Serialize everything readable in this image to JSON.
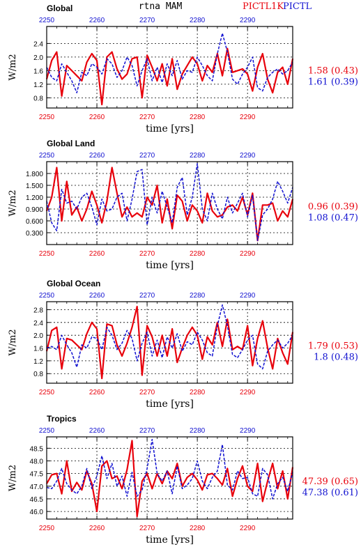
{
  "header": {
    "center_title": "rtna MAM",
    "series1_name": "PICTL1K",
    "series2_name": "PICTL",
    "red_color": "#e8000b",
    "blue_color": "#1010d0"
  },
  "chart_data": [
    {
      "type": "line",
      "title": "Global",
      "xlabel": "time [yrs]",
      "ylabel": "W/m2",
      "xlim": [
        2250,
        2299
      ],
      "ylim": [
        0.5,
        2.9
      ],
      "xticks": [
        2250,
        2260,
        2270,
        2280,
        2290
      ],
      "xtick_labels": [
        "2250",
        "2260",
        "2270",
        "2280",
        "2290"
      ],
      "yticks": [
        0.8,
        1.2,
        1.6,
        2.0,
        2.4
      ],
      "ytick_labels": [
        "0.8",
        "1.2",
        "1.6",
        "2.0",
        "2.4"
      ],
      "grid": true,
      "stats": [
        "1.58 (0.43)",
        "1.61 (0.39)"
      ],
      "x": [
        2250,
        2251,
        2252,
        2253,
        2254,
        2255,
        2256,
        2257,
        2258,
        2259,
        2260,
        2261,
        2262,
        2263,
        2264,
        2265,
        2266,
        2267,
        2268,
        2269,
        2270,
        2271,
        2272,
        2273,
        2274,
        2275,
        2276,
        2277,
        2278,
        2279,
        2280,
        2281,
        2282,
        2283,
        2284,
        2285,
        2286,
        2287,
        2288,
        2289,
        2290,
        2291,
        2292,
        2293,
        2294,
        2295,
        2296,
        2297,
        2298,
        2299
      ],
      "series": [
        {
          "name": "PICTL1K",
          "color": "#e8000b",
          "style": "solid",
          "values": [
            1.35,
            1.9,
            2.15,
            0.85,
            1.75,
            1.6,
            1.45,
            1.3,
            1.85,
            2.1,
            1.9,
            0.6,
            2.0,
            2.15,
            1.65,
            1.35,
            1.5,
            1.95,
            2.0,
            0.8,
            2.05,
            1.7,
            1.3,
            1.8,
            1.15,
            1.95,
            1.05,
            1.5,
            1.75,
            2.0,
            1.8,
            1.3,
            1.75,
            1.55,
            2.1,
            1.45,
            2.25,
            1.55,
            1.6,
            1.65,
            1.5,
            1.0,
            1.7,
            2.1,
            1.35,
            0.95,
            1.55,
            1.7,
            1.2,
            1.95
          ]
        },
        {
          "name": "PICTL",
          "color": "#1010d0",
          "style": "dashed",
          "values": [
            1.7,
            1.4,
            1.3,
            1.8,
            1.55,
            1.3,
            0.95,
            1.55,
            1.45,
            1.8,
            1.7,
            1.5,
            1.95,
            1.8,
            1.4,
            1.6,
            2.0,
            1.75,
            1.15,
            1.6,
            1.95,
            1.3,
            1.7,
            1.25,
            1.8,
            1.45,
            1.9,
            1.35,
            1.6,
            1.55,
            2.0,
            1.75,
            1.45,
            1.3,
            2.1,
            2.7,
            2.15,
            1.35,
            1.2,
            1.5,
            1.7,
            2.0,
            1.1,
            1.0,
            1.4,
            1.55,
            1.65,
            1.5,
            1.6,
            1.85
          ]
        }
      ]
    },
    {
      "type": "line",
      "title": "Global Land",
      "xlabel": "time [yrs]",
      "ylabel": "W/m2",
      "xlim": [
        2250,
        2299
      ],
      "ylim": [
        0.0,
        2.1
      ],
      "xticks": [
        2250,
        2260,
        2270,
        2280,
        2290
      ],
      "xtick_labels": [
        "2250",
        "2260",
        "2270",
        "2280",
        "2290"
      ],
      "yticks": [
        0.3,
        0.6,
        0.9,
        1.2,
        1.5,
        1.8
      ],
      "ytick_labels": [
        "0.300",
        "0.600",
        "0.900",
        "1.200",
        "1.500",
        "1.800"
      ],
      "grid": true,
      "stats": [
        "0.96 (0.39)",
        "1.08 (0.47)"
      ],
      "x": [
        2250,
        2251,
        2252,
        2253,
        2254,
        2255,
        2256,
        2257,
        2258,
        2259,
        2260,
        2261,
        2262,
        2263,
        2264,
        2265,
        2266,
        2267,
        2268,
        2269,
        2270,
        2271,
        2272,
        2273,
        2274,
        2275,
        2276,
        2277,
        2278,
        2279,
        2280,
        2281,
        2282,
        2283,
        2284,
        2285,
        2286,
        2287,
        2288,
        2289,
        2290,
        2291,
        2292,
        2293,
        2294,
        2295,
        2296,
        2297,
        2298,
        2299
      ],
      "series": [
        {
          "name": "PICTL1K",
          "color": "#e8000b",
          "style": "solid",
          "values": [
            0.85,
            1.2,
            1.95,
            0.6,
            1.6,
            0.75,
            0.95,
            0.6,
            0.9,
            1.35,
            1.0,
            0.55,
            1.1,
            1.95,
            1.3,
            0.7,
            0.95,
            0.7,
            0.8,
            0.7,
            1.2,
            1.0,
            1.5,
            0.55,
            1.15,
            0.4,
            1.25,
            1.1,
            0.6,
            1.0,
            0.85,
            0.55,
            1.3,
            0.85,
            0.7,
            0.75,
            0.95,
            1.0,
            0.85,
            1.2,
            0.75,
            1.3,
            0.1,
            1.0,
            1.0,
            1.05,
            0.6,
            0.85,
            0.7,
            1.15
          ]
        },
        {
          "name": "PICTL",
          "color": "#1010d0",
          "style": "dashed",
          "values": [
            1.1,
            0.55,
            0.35,
            1.4,
            1.05,
            1.1,
            0.9,
            1.2,
            1.3,
            0.95,
            0.5,
            1.15,
            0.85,
            0.9,
            1.2,
            1.3,
            0.6,
            1.15,
            1.85,
            1.9,
            0.5,
            1.2,
            0.8,
            1.35,
            0.95,
            0.55,
            1.45,
            1.7,
            0.75,
            1.2,
            2.05,
            0.9,
            0.6,
            1.3,
            0.9,
            0.65,
            1.2,
            0.8,
            1.05,
            1.3,
            0.7,
            1.25,
            0.1,
            0.75,
            0.9,
            1.15,
            1.6,
            1.35,
            1.05,
            1.45
          ]
        }
      ]
    },
    {
      "type": "line",
      "title": "Global Ocean",
      "xlabel": "time [yrs]",
      "ylabel": "W/m2",
      "xlim": [
        2250,
        2299
      ],
      "ylim": [
        0.5,
        3.05
      ],
      "xticks": [
        2250,
        2260,
        2270,
        2280,
        2290
      ],
      "xtick_labels": [
        "2250",
        "2260",
        "2270",
        "2280",
        "2290"
      ],
      "yticks": [
        0.8,
        1.2,
        1.6,
        2.0,
        2.4,
        2.8
      ],
      "ytick_labels": [
        "0.8",
        "1.2",
        "1.6",
        "2.0",
        "2.4",
        "2.8"
      ],
      "grid": true,
      "stats": [
        "1.79 (0.53)",
        "1.8 (0.48)"
      ],
      "x": [
        2250,
        2251,
        2252,
        2253,
        2254,
        2255,
        2256,
        2257,
        2258,
        2259,
        2260,
        2261,
        2262,
        2263,
        2264,
        2265,
        2266,
        2267,
        2268,
        2269,
        2270,
        2271,
        2272,
        2273,
        2274,
        2275,
        2276,
        2277,
        2278,
        2279,
        2280,
        2281,
        2282,
        2283,
        2284,
        2285,
        2286,
        2287,
        2288,
        2289,
        2290,
        2291,
        2292,
        2293,
        2294,
        2295,
        2296,
        2297,
        2298,
        2299
      ],
      "series": [
        {
          "name": "PICTL1K",
          "color": "#e8000b",
          "style": "solid",
          "values": [
            1.5,
            2.15,
            2.25,
            0.95,
            1.9,
            1.85,
            1.7,
            1.55,
            2.05,
            2.4,
            2.2,
            0.65,
            2.35,
            2.3,
            1.7,
            1.35,
            1.75,
            2.25,
            2.9,
            0.75,
            2.3,
            1.95,
            1.35,
            2.0,
            1.35,
            2.2,
            1.15,
            1.6,
            2.0,
            2.25,
            2.0,
            1.25,
            1.95,
            1.7,
            2.4,
            1.65,
            2.5,
            1.55,
            1.65,
            1.55,
            2.3,
            1.05,
            1.9,
            2.45,
            1.6,
            0.95,
            1.9,
            1.45,
            1.1,
            2.1
          ]
        },
        {
          "name": "PICTL",
          "color": "#1010d0",
          "style": "dashed",
          "values": [
            1.6,
            1.65,
            1.55,
            2.0,
            1.7,
            1.45,
            1.0,
            1.7,
            1.6,
            1.95,
            1.9,
            1.55,
            2.25,
            2.0,
            1.55,
            1.75,
            2.15,
            1.9,
            1.2,
            1.75,
            2.1,
            1.35,
            1.85,
            1.3,
            1.95,
            1.6,
            2.05,
            1.5,
            1.8,
            1.7,
            2.1,
            1.85,
            1.45,
            1.35,
            2.3,
            2.95,
            2.3,
            1.4,
            1.3,
            1.55,
            1.85,
            2.0,
            1.1,
            0.95,
            1.5,
            1.7,
            1.85,
            1.6,
            1.75,
            2.0
          ]
        }
      ]
    },
    {
      "type": "line",
      "title": "Tropics",
      "xlabel": "time [yrs]",
      "ylabel": "W/m2",
      "xlim": [
        2250,
        2299
      ],
      "ylim": [
        45.7,
        48.95
      ],
      "xticks": [
        2250,
        2260,
        2270,
        2280,
        2290
      ],
      "xtick_labels": [
        "2250",
        "2260",
        "2270",
        "2280",
        "2290"
      ],
      "yticks": [
        46.0,
        46.5,
        47.0,
        47.5,
        48.0,
        48.5
      ],
      "ytick_labels": [
        "46.0",
        "46.5",
        "47.0",
        "47.5",
        "48.0",
        "48.5"
      ],
      "grid": true,
      "stats": [
        "47.39 (0.65)",
        "47.38 (0.61)"
      ],
      "x": [
        2250,
        2251,
        2252,
        2253,
        2254,
        2255,
        2256,
        2257,
        2258,
        2259,
        2260,
        2261,
        2262,
        2263,
        2264,
        2265,
        2266,
        2267,
        2268,
        2269,
        2270,
        2271,
        2272,
        2273,
        2274,
        2275,
        2276,
        2277,
        2278,
        2279,
        2280,
        2281,
        2282,
        2283,
        2284,
        2285,
        2286,
        2287,
        2288,
        2289,
        2290,
        2291,
        2292,
        2293,
        2294,
        2295,
        2296,
        2297,
        2298,
        2299
      ],
      "series": [
        {
          "name": "PICTL1K",
          "color": "#e8000b",
          "style": "solid",
          "values": [
            47.1,
            47.45,
            47.5,
            46.7,
            48.0,
            46.8,
            47.15,
            46.85,
            47.6,
            47.1,
            46.0,
            47.8,
            48.0,
            47.3,
            47.4,
            46.9,
            47.65,
            48.8,
            45.8,
            47.2,
            47.5,
            46.9,
            47.5,
            47.1,
            47.6,
            47.3,
            47.9,
            47.0,
            47.35,
            47.5,
            47.25,
            46.85,
            47.45,
            47.5,
            47.3,
            47.05,
            47.7,
            46.6,
            47.3,
            47.8,
            47.0,
            46.8,
            47.9,
            46.4,
            47.2,
            47.9,
            46.9,
            47.6,
            46.5,
            47.75
          ]
        },
        {
          "name": "PICTL",
          "color": "#1010d0",
          "style": "dashed",
          "values": [
            46.95,
            46.9,
            47.2,
            47.7,
            47.1,
            46.85,
            46.7,
            47.0,
            47.7,
            46.9,
            47.4,
            48.2,
            47.3,
            47.9,
            47.0,
            47.4,
            46.6,
            47.55,
            46.6,
            46.85,
            47.7,
            48.85,
            47.5,
            47.2,
            47.6,
            46.7,
            47.8,
            46.9,
            47.05,
            47.3,
            48.0,
            47.2,
            46.9,
            47.35,
            47.6,
            48.65,
            47.05,
            46.85,
            47.6,
            47.3,
            47.35,
            46.7,
            46.6,
            47.7,
            47.45,
            46.5,
            47.1,
            47.35,
            46.8,
            47.55
          ]
        }
      ]
    }
  ]
}
